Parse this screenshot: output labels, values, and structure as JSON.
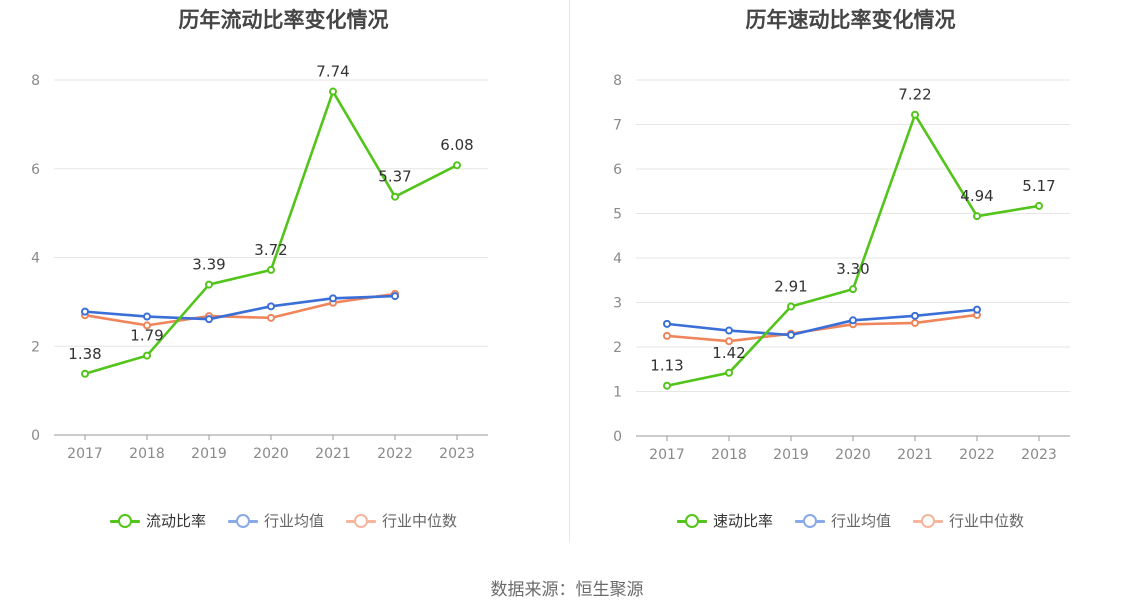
{
  "source": "数据来源：恒生聚源",
  "chart_data": [
    {
      "type": "line",
      "title": "历年流动比率变化情况",
      "categories": [
        "2017",
        "2018",
        "2019",
        "2020",
        "2021",
        "2022",
        "2023"
      ],
      "ylim": [
        0,
        8
      ],
      "yticks": [
        0,
        2,
        4,
        6,
        8
      ],
      "grid": true,
      "legend_position": "bottom",
      "series": [
        {
          "name": "流动比率",
          "color": "#52c41a",
          "labeled": true,
          "values": [
            1.38,
            1.79,
            3.39,
            3.72,
            7.74,
            5.37,
            6.08
          ],
          "labels": [
            "1.38",
            "1.79",
            "3.39",
            "3.72",
            "7.74",
            "5.37",
            "6.08"
          ]
        },
        {
          "name": "行业均值",
          "color": "#3b6fd8",
          "labeled": false,
          "values": [
            2.78,
            2.67,
            2.61,
            2.9,
            3.08,
            3.13,
            null
          ]
        },
        {
          "name": "行业中位数",
          "color": "#f0845a",
          "labeled": false,
          "values": [
            2.7,
            2.47,
            2.68,
            2.64,
            2.98,
            3.18,
            null
          ]
        }
      ]
    },
    {
      "type": "line",
      "title": "历年速动比率变化情况",
      "categories": [
        "2017",
        "2018",
        "2019",
        "2020",
        "2021",
        "2022",
        "2023"
      ],
      "ylim": [
        0,
        8
      ],
      "yticks": [
        0,
        1,
        2,
        3,
        4,
        5,
        6,
        7,
        8
      ],
      "grid": true,
      "legend_position": "bottom",
      "series": [
        {
          "name": "速动比率",
          "color": "#52c41a",
          "labeled": true,
          "values": [
            1.13,
            1.42,
            2.91,
            3.3,
            7.22,
            4.94,
            5.17
          ],
          "labels": [
            "1.13",
            "1.42",
            "2.91",
            "3.30",
            "7.22",
            "4.94",
            "5.17"
          ]
        },
        {
          "name": "行业均值",
          "color": "#3b6fd8",
          "labeled": false,
          "values": [
            2.52,
            2.37,
            2.27,
            2.6,
            2.7,
            2.84,
            null
          ]
        },
        {
          "name": "行业中位数",
          "color": "#f0845a",
          "labeled": false,
          "values": [
            2.25,
            2.13,
            2.3,
            2.51,
            2.54,
            2.72,
            null
          ]
        }
      ]
    }
  ]
}
